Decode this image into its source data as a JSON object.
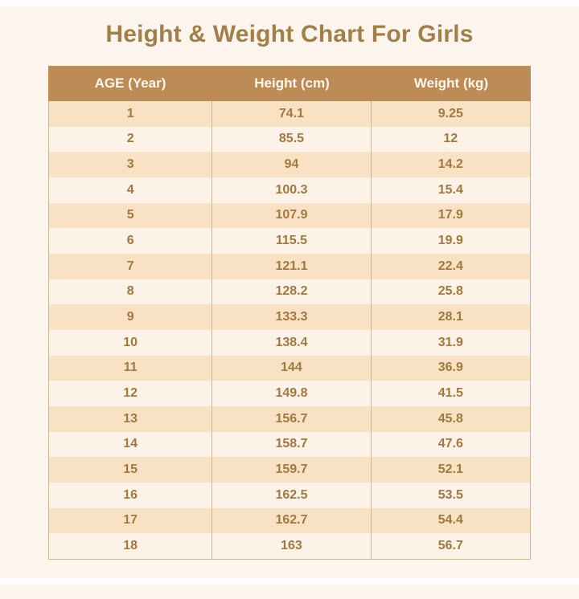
{
  "page": {
    "title": "Height & Weight Chart For Girls",
    "colors": {
      "background": "#fcf5ee",
      "top_strip": "#fffefd",
      "title_text": "#a27e48",
      "header_bg": "#bd8b55",
      "header_text": "#fdf6ec",
      "row_odd_bg": "#f8e2c3",
      "row_even_bg": "#fcf2e7",
      "cell_text": "#a1793f",
      "table_border": "#c9b896"
    }
  },
  "table": {
    "columns": [
      "AGE (Year)",
      "Height (cm)",
      "Weight (kg)"
    ],
    "rows": [
      [
        "1",
        "74.1",
        "9.25"
      ],
      [
        "2",
        "85.5",
        "12"
      ],
      [
        "3",
        "94",
        "14.2"
      ],
      [
        "4",
        "100.3",
        "15.4"
      ],
      [
        "5",
        "107.9",
        "17.9"
      ],
      [
        "6",
        "115.5",
        "19.9"
      ],
      [
        "7",
        "121.1",
        "22.4"
      ],
      [
        "8",
        "128.2",
        "25.8"
      ],
      [
        "9",
        "133.3",
        "28.1"
      ],
      [
        "10",
        "138.4",
        "31.9"
      ],
      [
        "11",
        "144",
        "36.9"
      ],
      [
        "12",
        "149.8",
        "41.5"
      ],
      [
        "13",
        "156.7",
        "45.8"
      ],
      [
        "14",
        "158.7",
        "47.6"
      ],
      [
        "15",
        "159.7",
        "52.1"
      ],
      [
        "16",
        "162.5",
        "53.5"
      ],
      [
        "17",
        "162.7",
        "54.4"
      ],
      [
        "18",
        "163",
        "56.7"
      ]
    ]
  },
  "chart_data": {
    "type": "table",
    "title": "Height & Weight Chart For Girls",
    "columns": [
      "AGE (Year)",
      "Height (cm)",
      "Weight (kg)"
    ],
    "x": [
      1,
      2,
      3,
      4,
      5,
      6,
      7,
      8,
      9,
      10,
      11,
      12,
      13,
      14,
      15,
      16,
      17,
      18
    ],
    "xlabel": "AGE (Year)",
    "series": [
      {
        "name": "Height (cm)",
        "values": [
          74.1,
          85.5,
          94,
          100.3,
          107.9,
          115.5,
          121.1,
          128.2,
          133.3,
          138.4,
          144,
          149.8,
          156.7,
          158.7,
          159.7,
          162.5,
          162.7,
          163
        ]
      },
      {
        "name": "Weight (kg)",
        "values": [
          9.25,
          12,
          14.2,
          15.4,
          17.9,
          19.9,
          22.4,
          25.8,
          28.1,
          31.9,
          36.9,
          41.5,
          45.8,
          47.6,
          52.1,
          53.5,
          54.4,
          56.7
        ]
      }
    ]
  }
}
